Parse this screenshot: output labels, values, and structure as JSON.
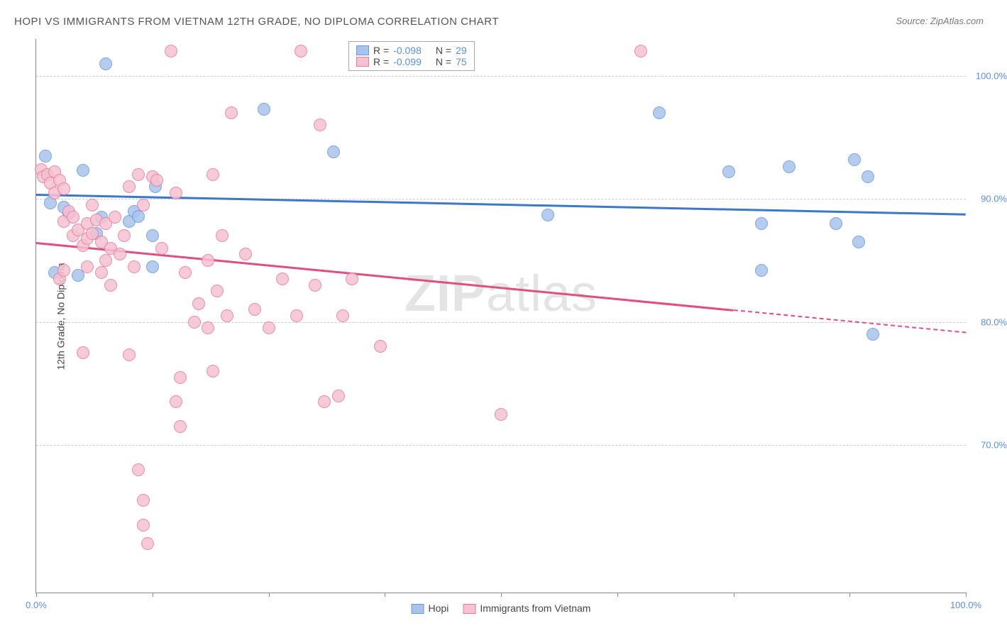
{
  "title": "HOPI VS IMMIGRANTS FROM VIETNAM 12TH GRADE, NO DIPLOMA CORRELATION CHART",
  "source": "Source: ZipAtlas.com",
  "ylabel": "12th Grade, No Diploma",
  "watermark_a": "ZIP",
  "watermark_b": "atlas",
  "chart": {
    "type": "scatter",
    "background": "#ffffff",
    "grid_color": "#cccccc",
    "axis_color": "#888888",
    "label_fontsize": 14,
    "tick_fontsize": 13,
    "tick_color": "#5b8fd6",
    "xlim": [
      0,
      100
    ],
    "ylim": [
      58,
      103
    ],
    "yticks": [
      70,
      80,
      90,
      100
    ],
    "ytick_labels": [
      "70.0%",
      "80.0%",
      "90.0%",
      "100.0%"
    ],
    "xticks": [
      0,
      12.5,
      25,
      37.5,
      50,
      62.5,
      75,
      87.5,
      100
    ],
    "xtick_labels_shown": {
      "0": "0.0%",
      "100": "100.0%"
    },
    "point_radius": 9,
    "point_border_width": 1.5,
    "point_fill_opacity": 0.35,
    "series": [
      {
        "name": "Hopi",
        "legend_label": "Hopi",
        "color_fill": "#a9c4ec",
        "color_stroke": "#6b99d8",
        "R": "-0.098",
        "N": "29",
        "trend": {
          "y_at_x0": 90.4,
          "y_at_x100": 88.8,
          "color": "#3b78cc",
          "solid_to_x": 100
        },
        "points": [
          [
            5,
            92.3
          ],
          [
            7.5,
            101.0
          ],
          [
            3.5,
            88.8
          ],
          [
            1.5,
            89.7
          ],
          [
            1.0,
            93.5
          ],
          [
            7.0,
            88.5
          ],
          [
            10.0,
            88.2
          ],
          [
            10.5,
            89.0
          ],
          [
            12.5,
            87.0
          ],
          [
            12.5,
            84.5
          ],
          [
            2.0,
            84.0
          ],
          [
            4.5,
            83.8
          ],
          [
            24.5,
            97.3
          ],
          [
            32.0,
            93.8
          ],
          [
            55.0,
            88.7
          ],
          [
            67.0,
            97.0
          ],
          [
            74.5,
            92.2
          ],
          [
            78.0,
            88.0
          ],
          [
            78.0,
            84.2
          ],
          [
            81.0,
            92.6
          ],
          [
            86.0,
            88.0
          ],
          [
            88.0,
            93.2
          ],
          [
            88.5,
            86.5
          ],
          [
            90.0,
            79.0
          ],
          [
            89.5,
            91.8
          ],
          [
            3.0,
            89.3
          ],
          [
            6.5,
            87.2
          ],
          [
            11.0,
            88.6
          ],
          [
            12.8,
            91.0
          ]
        ]
      },
      {
        "name": "Immigrants from Vietnam",
        "legend_label": "Immigrants from Vietnam",
        "color_fill": "#f6c1d1",
        "color_stroke": "#e77ba0",
        "R": "-0.099",
        "N": "75",
        "trend": {
          "y_at_x0": 86.5,
          "y_at_x100": 79.2,
          "color": "#e14f82",
          "solid_to_x": 75
        },
        "points": [
          [
            0.5,
            92.4
          ],
          [
            0.8,
            91.8
          ],
          [
            1.2,
            92.0
          ],
          [
            1.5,
            91.3
          ],
          [
            2.0,
            92.2
          ],
          [
            2.0,
            90.5
          ],
          [
            2.5,
            91.5
          ],
          [
            3.0,
            90.8
          ],
          [
            3.0,
            88.2
          ],
          [
            3.5,
            89.0
          ],
          [
            4.0,
            88.5
          ],
          [
            4.0,
            87.0
          ],
          [
            4.5,
            87.5
          ],
          [
            5.0,
            86.2
          ],
          [
            5.5,
            88.0
          ],
          [
            5.5,
            86.8
          ],
          [
            5.5,
            84.5
          ],
          [
            6.0,
            89.5
          ],
          [
            6.0,
            87.2
          ],
          [
            6.5,
            88.3
          ],
          [
            7.0,
            86.5
          ],
          [
            7.0,
            84.0
          ],
          [
            7.5,
            88.0
          ],
          [
            7.5,
            85.0
          ],
          [
            8.0,
            86.0
          ],
          [
            8.0,
            83.0
          ],
          [
            8.5,
            88.5
          ],
          [
            2.5,
            83.5
          ],
          [
            3.0,
            84.2
          ],
          [
            5.0,
            77.5
          ],
          [
            9.0,
            85.5
          ],
          [
            9.5,
            87.0
          ],
          [
            10.0,
            91.0
          ],
          [
            10.0,
            77.3
          ],
          [
            10.5,
            84.5
          ],
          [
            11.0,
            92.0
          ],
          [
            11.0,
            68.0
          ],
          [
            11.5,
            89.5
          ],
          [
            11.5,
            63.5
          ],
          [
            12.0,
            62.0
          ],
          [
            12.5,
            91.8
          ],
          [
            13.0,
            91.5
          ],
          [
            13.5,
            86.0
          ],
          [
            14.5,
            102.0
          ],
          [
            15.0,
            90.5
          ],
          [
            15.0,
            73.5
          ],
          [
            15.5,
            75.5
          ],
          [
            15.5,
            71.5
          ],
          [
            16.0,
            84.0
          ],
          [
            17.0,
            80.0
          ],
          [
            17.5,
            81.5
          ],
          [
            18.5,
            85.0
          ],
          [
            18.5,
            79.5
          ],
          [
            19.0,
            92.0
          ],
          [
            19.0,
            76.0
          ],
          [
            19.5,
            82.5
          ],
          [
            20.0,
            87.0
          ],
          [
            20.5,
            80.5
          ],
          [
            21.0,
            97.0
          ],
          [
            22.5,
            85.5
          ],
          [
            23.5,
            81.0
          ],
          [
            25.0,
            79.5
          ],
          [
            26.5,
            83.5
          ],
          [
            28.0,
            80.5
          ],
          [
            28.5,
            102.0
          ],
          [
            30.0,
            83.0
          ],
          [
            30.5,
            96.0
          ],
          [
            31.0,
            73.5
          ],
          [
            32.5,
            74.0
          ],
          [
            33.0,
            80.5
          ],
          [
            34.0,
            83.5
          ],
          [
            37.0,
            78.0
          ],
          [
            50.0,
            72.5
          ],
          [
            65.0,
            102.0
          ],
          [
            11.5,
            65.5
          ]
        ]
      }
    ]
  },
  "stats_legend": {
    "r_label": "R =",
    "n_label": "N ="
  }
}
